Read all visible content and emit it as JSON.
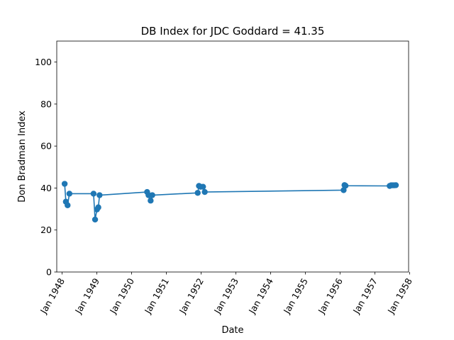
{
  "chart_data": {
    "type": "line",
    "title": "DB Index for JDC Goddard = 41.35",
    "xlabel": "Date",
    "ylabel": "Don Bradman Index",
    "ylim": [
      0,
      110
    ],
    "xlim": [
      "1947-11-06",
      "1957-12-22"
    ],
    "yticks": [
      0,
      20,
      40,
      60,
      80,
      100
    ],
    "xticks": [
      {
        "date": "1948-01-01",
        "label": "Jan 1948"
      },
      {
        "date": "1949-01-01",
        "label": "Jan 1949"
      },
      {
        "date": "1950-01-01",
        "label": "Jan 1950"
      },
      {
        "date": "1951-01-01",
        "label": "Jan 1951"
      },
      {
        "date": "1952-01-01",
        "label": "Jan 1952"
      },
      {
        "date": "1953-01-01",
        "label": "Jan 1953"
      },
      {
        "date": "1954-01-01",
        "label": "Jan 1954"
      },
      {
        "date": "1955-01-01",
        "label": "Jan 1955"
      },
      {
        "date": "1956-01-01",
        "label": "Jan 1956"
      },
      {
        "date": "1957-01-01",
        "label": "Jan 1957"
      },
      {
        "date": "1958-01-01",
        "label": "Jan 1958"
      }
    ],
    "grid": false,
    "series": [
      {
        "color": "#1f77b4",
        "marker": "circle",
        "points": [
          {
            "x": "1948-01-28",
            "y": 42.0
          },
          {
            "x": "1948-02-10",
            "y": 33.5
          },
          {
            "x": "1948-02-28",
            "y": 31.8
          },
          {
            "x": "1948-03-18",
            "y": 37.3
          },
          {
            "x": "1948-11-27",
            "y": 37.3
          },
          {
            "x": "1948-12-13",
            "y": 25.0
          },
          {
            "x": "1949-01-02",
            "y": 29.8
          },
          {
            "x": "1949-01-16",
            "y": 30.8
          },
          {
            "x": "1949-01-29",
            "y": 36.6
          },
          {
            "x": "1950-06-13",
            "y": 38.1
          },
          {
            "x": "1950-06-28",
            "y": 36.6
          },
          {
            "x": "1950-07-20",
            "y": 34.0
          },
          {
            "x": "1950-08-06",
            "y": 36.6
          },
          {
            "x": "1951-11-27",
            "y": 37.7
          },
          {
            "x": "1951-12-10",
            "y": 41.0
          },
          {
            "x": "1951-12-27",
            "y": 40.6
          },
          {
            "x": "1952-01-22",
            "y": 40.6
          },
          {
            "x": "1952-02-09",
            "y": 38.1
          },
          {
            "x": "1956-02-08",
            "y": 39.0
          },
          {
            "x": "1956-02-17",
            "y": 41.4
          },
          {
            "x": "1956-02-28",
            "y": 41.1
          },
          {
            "x": "1957-06-06",
            "y": 41.0
          },
          {
            "x": "1957-06-22",
            "y": 41.3
          },
          {
            "x": "1957-07-09",
            "y": 41.3
          },
          {
            "x": "1957-07-25",
            "y": 41.3
          },
          {
            "x": "1957-08-10",
            "y": 41.35
          }
        ]
      }
    ]
  }
}
